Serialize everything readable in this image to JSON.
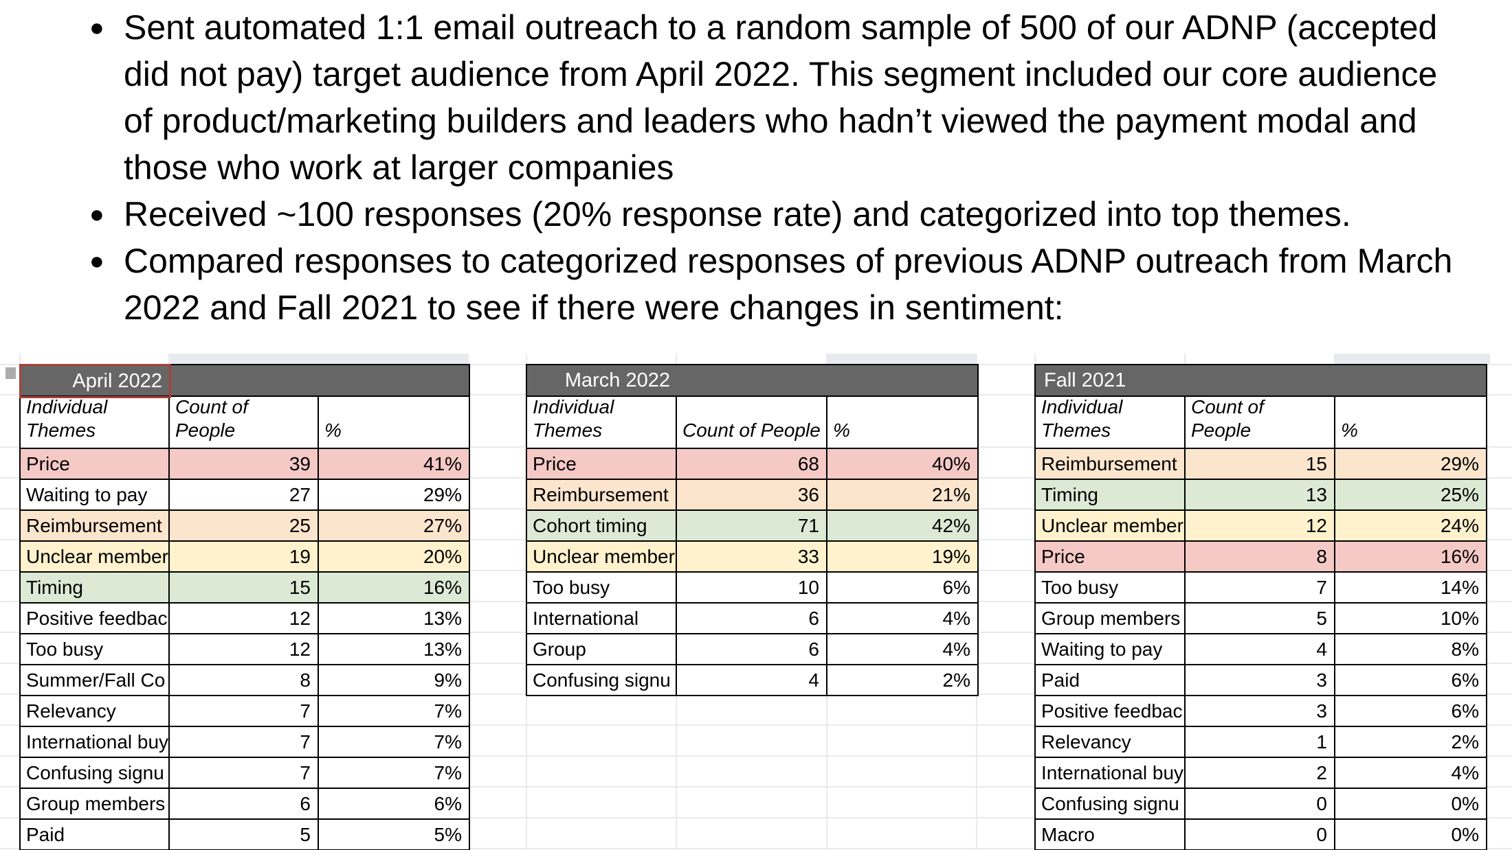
{
  "bullets": [
    {
      "marker": "●",
      "lines": [
        "Sent automated 1:1 email outreach to a random sample of 500 of our ADNP (accepted",
        "did not pay) target audience from April 2022. This segment included our core audience",
        "of product/marketing builders and leaders who hadn’t viewed the payment modal and",
        "those who work at larger companies"
      ]
    },
    {
      "marker": "●",
      "lines": [
        "Received ~100 responses (20% response rate) and categorized into top themes."
      ]
    },
    {
      "marker": "●",
      "lines": [
        "Compared responses to categorized responses of previous ADNP outreach from March",
        "2022 and Fall 2021 to see if there were changes in sentiment:"
      ]
    }
  ],
  "sheet": {
    "colors": {
      "band_bg": "#666667",
      "title_text": "#ffffff",
      "selected_border": "#a94138",
      "table_border": "#000000",
      "gridline": "#e8eaed",
      "fragment": "#e8eaed",
      "row_white": "#ffffff",
      "row_pink": "#f5c9c6",
      "row_orange": "#fce5cd",
      "row_yellow": "#fff2cc",
      "row_green": "#dcead5"
    },
    "tables": [
      {
        "title": "April 2022",
        "title_align": "right",
        "selected": true,
        "columns": [
          "Individual Themes",
          "Count of People",
          "%"
        ],
        "rows": [
          {
            "theme": "Price",
            "count": 39,
            "percent": "41%",
            "highlight": "pink"
          },
          {
            "theme": "Waiting to pay",
            "count": 27,
            "percent": "29%",
            "highlight": "white"
          },
          {
            "theme": "Reimbursement",
            "count": 25,
            "percent": "27%",
            "highlight": "orange"
          },
          {
            "theme": "Unclear member",
            "count": 19,
            "percent": "20%",
            "highlight": "yellow"
          },
          {
            "theme": "Timing",
            "count": 15,
            "percent": "16%",
            "highlight": "green"
          },
          {
            "theme": "Positive feedbac",
            "count": 12,
            "percent": "13%",
            "highlight": "white"
          },
          {
            "theme": "Too busy",
            "count": 12,
            "percent": "13%",
            "highlight": "white"
          },
          {
            "theme": "Summer/Fall Co",
            "count": 8,
            "percent": "9%",
            "highlight": "white"
          },
          {
            "theme": "Relevancy",
            "count": 7,
            "percent": "7%",
            "highlight": "white"
          },
          {
            "theme": "International buy",
            "count": 7,
            "percent": "7%",
            "highlight": "white"
          },
          {
            "theme": "Confusing signu",
            "count": 7,
            "percent": "7%",
            "highlight": "white"
          },
          {
            "theme": "Group members",
            "count": 6,
            "percent": "6%",
            "highlight": "white"
          },
          {
            "theme": "Paid",
            "count": 5,
            "percent": "5%",
            "highlight": "white"
          }
        ]
      },
      {
        "title": "March 2022",
        "title_align": "right",
        "selected": false,
        "columns": [
          "Individual Themes",
          "Count of People",
          "%"
        ],
        "rows": [
          {
            "theme": "Price",
            "count": 68,
            "percent": "40%",
            "highlight": "pink"
          },
          {
            "theme": "Reimbursement",
            "count": 36,
            "percent": "21%",
            "highlight": "orange"
          },
          {
            "theme": "Cohort timing",
            "count": 71,
            "percent": "42%",
            "highlight": "green"
          },
          {
            "theme": "Unclear member",
            "count": 33,
            "percent": "19%",
            "highlight": "yellow"
          },
          {
            "theme": "Too busy",
            "count": 10,
            "percent": "6%",
            "highlight": "white"
          },
          {
            "theme": "International",
            "count": 6,
            "percent": "4%",
            "highlight": "white"
          },
          {
            "theme": "Group",
            "count": 6,
            "percent": "4%",
            "highlight": "white"
          },
          {
            "theme": "Confusing signu",
            "count": 4,
            "percent": "2%",
            "highlight": "white"
          }
        ]
      },
      {
        "title": "Fall 2021",
        "title_align": "left",
        "selected": false,
        "columns": [
          "Individual Themes",
          "Count of People",
          "%"
        ],
        "rows": [
          {
            "theme": "Reimbursement",
            "count": 15,
            "percent": "29%",
            "highlight": "orange"
          },
          {
            "theme": "Timing",
            "count": 13,
            "percent": "25%",
            "highlight": "green"
          },
          {
            "theme": "Unclear member",
            "count": 12,
            "percent": "24%",
            "highlight": "yellow"
          },
          {
            "theme": "Price",
            "count": 8,
            "percent": "16%",
            "highlight": "pink"
          },
          {
            "theme": "Too busy",
            "count": 7,
            "percent": "14%",
            "highlight": "white"
          },
          {
            "theme": "Group members",
            "count": 5,
            "percent": "10%",
            "highlight": "white"
          },
          {
            "theme": "Waiting to pay",
            "count": 4,
            "percent": "8%",
            "highlight": "white"
          },
          {
            "theme": "Paid",
            "count": 3,
            "percent": "6%",
            "highlight": "white"
          },
          {
            "theme": "Positive feedbac",
            "count": 3,
            "percent": "6%",
            "highlight": "white"
          },
          {
            "theme": "Relevancy",
            "count": 1,
            "percent": "2%",
            "highlight": "white"
          },
          {
            "theme": "International buy",
            "count": 2,
            "percent": "4%",
            "highlight": "white"
          },
          {
            "theme": "Confusing signu",
            "count": 0,
            "percent": "0%",
            "highlight": "white"
          },
          {
            "theme": "Macro",
            "count": 0,
            "percent": "0%",
            "highlight": "white"
          }
        ]
      }
    ]
  }
}
